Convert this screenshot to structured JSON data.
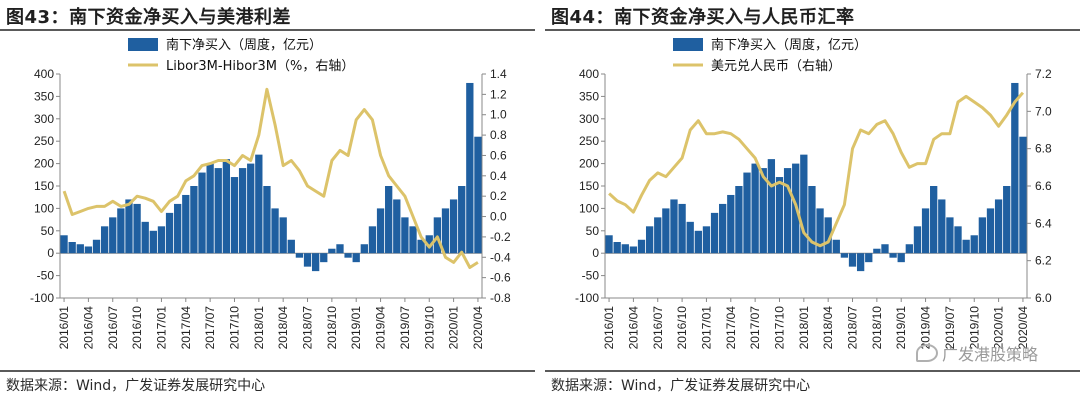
{
  "charts": [
    {
      "title_label": "图43：",
      "title_text": "南下资金净买入与美港利差",
      "source": "数据来源：Wind，广发证券发展研究中心"
    },
    {
      "title_label": "图44：",
      "title_text": "南下资金净买入与人民币汇率",
      "source": "数据来源：Wind，广发证券发展研究中心",
      "watermark": "广发港股策略"
    }
  ],
  "chart_data": [
    {
      "type": "bar",
      "title": "南下资金净买入与美港利差",
      "x": [
        "2016/01",
        "2016/02",
        "2016/03",
        "2016/04",
        "2016/05",
        "2016/06",
        "2016/07",
        "2016/08",
        "2016/09",
        "2016/10",
        "2016/11",
        "2016/12",
        "2017/01",
        "2017/02",
        "2017/03",
        "2017/04",
        "2017/05",
        "2017/06",
        "2017/07",
        "2017/08",
        "2017/09",
        "2017/10",
        "2017/11",
        "2017/12",
        "2018/01",
        "2018/02",
        "2018/03",
        "2018/04",
        "2018/05",
        "2018/06",
        "2018/07",
        "2018/08",
        "2018/09",
        "2018/10",
        "2018/11",
        "2018/12",
        "2019/01",
        "2019/02",
        "2019/03",
        "2019/04",
        "2019/05",
        "2019/06",
        "2019/07",
        "2019/08",
        "2019/09",
        "2019/10",
        "2019/11",
        "2019/12",
        "2020/01",
        "2020/02",
        "2020/03",
        "2020/04"
      ],
      "x_tick_labels": [
        "2016/01",
        "2016/04",
        "2016/07",
        "2016/10",
        "2017/01",
        "2017/04",
        "2017/07",
        "2017/10",
        "2018/01",
        "2018/04",
        "2018/07",
        "2018/10",
        "2019/01",
        "2019/04",
        "2019/07",
        "2019/10",
        "2020/01",
        "2020/04"
      ],
      "y_left": {
        "min": -100,
        "max": 400,
        "ticks": [
          -100,
          -50,
          0,
          50,
          100,
          150,
          200,
          250,
          300,
          350,
          400
        ]
      },
      "y_right": {
        "min": -0.8,
        "max": 1.4,
        "ticks": [
          "-0.8",
          "-0.6",
          "-0.4",
          "-0.2",
          "0.0",
          "0.2",
          "0.4",
          "0.6",
          "0.8",
          "1.0",
          "1.2",
          "1.4"
        ]
      },
      "legend_position": "top",
      "series": [
        {
          "name": "南下净买入（周度，亿元）",
          "axis": "left",
          "kind": "bar",
          "color": "#1f5fa0",
          "values": [
            40,
            25,
            20,
            15,
            30,
            60,
            80,
            100,
            120,
            110,
            70,
            50,
            60,
            90,
            110,
            130,
            150,
            180,
            200,
            190,
            210,
            170,
            190,
            200,
            220,
            150,
            100,
            80,
            30,
            -10,
            -30,
            -40,
            -20,
            10,
            20,
            -10,
            -20,
            20,
            60,
            100,
            150,
            120,
            80,
            60,
            30,
            40,
            80,
            100,
            120,
            150,
            380,
            260
          ]
        },
        {
          "name": "Libor3M-Hibor3M（%，右轴）",
          "axis": "right",
          "kind": "line",
          "color": "#dcc36a",
          "values": [
            0.25,
            0.02,
            0.05,
            0.08,
            0.1,
            0.1,
            0.15,
            0.1,
            0.12,
            0.2,
            0.18,
            0.15,
            0.05,
            0.15,
            0.2,
            0.35,
            0.4,
            0.5,
            0.52,
            0.55,
            0.55,
            0.5,
            0.6,
            0.55,
            0.8,
            1.25,
            0.9,
            0.5,
            0.55,
            0.45,
            0.3,
            0.25,
            0.2,
            0.55,
            0.65,
            0.6,
            0.95,
            1.05,
            0.95,
            0.6,
            0.4,
            0.3,
            0.2,
            0.0,
            -0.2,
            -0.3,
            -0.2,
            -0.4,
            -0.45,
            -0.35,
            -0.5,
            -0.45
          ]
        }
      ]
    },
    {
      "type": "bar",
      "title": "南下资金净买入与人民币汇率",
      "x": [
        "2016/01",
        "2016/02",
        "2016/03",
        "2016/04",
        "2016/05",
        "2016/06",
        "2016/07",
        "2016/08",
        "2016/09",
        "2016/10",
        "2016/11",
        "2016/12",
        "2017/01",
        "2017/02",
        "2017/03",
        "2017/04",
        "2017/05",
        "2017/06",
        "2017/07",
        "2017/08",
        "2017/09",
        "2017/10",
        "2017/11",
        "2017/12",
        "2018/01",
        "2018/02",
        "2018/03",
        "2018/04",
        "2018/05",
        "2018/06",
        "2018/07",
        "2018/08",
        "2018/09",
        "2018/10",
        "2018/11",
        "2018/12",
        "2019/01",
        "2019/02",
        "2019/03",
        "2019/04",
        "2019/05",
        "2019/06",
        "2019/07",
        "2019/08",
        "2019/09",
        "2019/10",
        "2019/11",
        "2019/12",
        "2020/01",
        "2020/02",
        "2020/03",
        "2020/04"
      ],
      "x_tick_labels": [
        "2016/01",
        "2016/04",
        "2016/07",
        "2016/10",
        "2017/01",
        "2017/04",
        "2017/07",
        "2017/10",
        "2018/01",
        "2018/04",
        "2018/07",
        "2018/10",
        "2019/01",
        "2019/04",
        "2019/07",
        "2019/10",
        "2020/01",
        "2020/04"
      ],
      "y_left": {
        "min": -100,
        "max": 400,
        "ticks": [
          -100,
          -50,
          0,
          50,
          100,
          150,
          200,
          250,
          300,
          350,
          400
        ]
      },
      "y_right": {
        "min": 6.0,
        "max": 7.2,
        "ticks": [
          "6.0",
          "6.2",
          "6.4",
          "6.6",
          "6.8",
          "7.0",
          "7.2"
        ]
      },
      "legend_position": "top",
      "series": [
        {
          "name": "南下净买入（周度，亿元）",
          "axis": "left",
          "kind": "bar",
          "color": "#1f5fa0",
          "values": [
            40,
            25,
            20,
            15,
            30,
            60,
            80,
            100,
            120,
            110,
            70,
            50,
            60,
            90,
            110,
            130,
            150,
            180,
            200,
            190,
            210,
            170,
            190,
            200,
            220,
            150,
            100,
            80,
            30,
            -10,
            -30,
            -40,
            -20,
            10,
            20,
            -10,
            -20,
            20,
            60,
            100,
            150,
            120,
            80,
            60,
            30,
            40,
            80,
            100,
            120,
            150,
            380,
            260
          ]
        },
        {
          "name": "美元兑人民币（右轴）",
          "axis": "right",
          "kind": "line",
          "color": "#dcc36a",
          "values": [
            6.56,
            6.52,
            6.5,
            6.46,
            6.55,
            6.63,
            6.67,
            6.65,
            6.7,
            6.75,
            6.9,
            6.95,
            6.88,
            6.88,
            6.89,
            6.88,
            6.85,
            6.8,
            6.75,
            6.65,
            6.6,
            6.62,
            6.6,
            6.5,
            6.35,
            6.3,
            6.28,
            6.3,
            6.4,
            6.5,
            6.8,
            6.9,
            6.88,
            6.93,
            6.95,
            6.88,
            6.78,
            6.7,
            6.72,
            6.72,
            6.85,
            6.88,
            6.88,
            7.05,
            7.08,
            7.05,
            7.02,
            6.98,
            6.92,
            6.98,
            7.05,
            7.1
          ]
        }
      ]
    }
  ]
}
